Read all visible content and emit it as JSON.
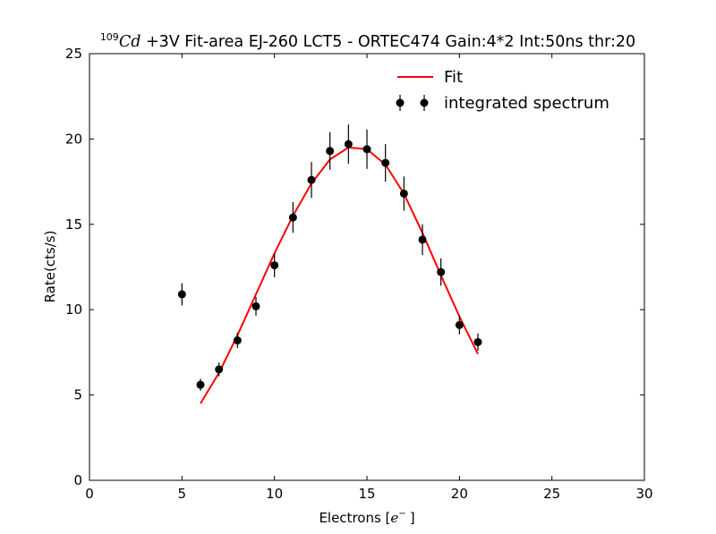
{
  "chart_data": {
    "type": "scatter",
    "title_sup": "109",
    "title_symbol": "Cd",
    "title_rest": " +3V Fit-area EJ-260 LCT5 - ORTEC474 Gain:4*2 Int:50ns thr:20",
    "xlabel_prefix": "Electrons [",
    "xlabel_math": "e",
    "xlabel_sup": "−",
    "xlabel_suffix": "]",
    "ylabel": "Rate(cts/s)",
    "xlim": [
      0,
      30
    ],
    "ylim": [
      0,
      25
    ],
    "x_ticks": [
      "0",
      "5",
      "10",
      "15",
      "20",
      "25",
      "30"
    ],
    "y_ticks": [
      "0",
      "5",
      "10",
      "15",
      "20",
      "25"
    ],
    "legend_position": "top-right",
    "series": [
      {
        "name": "integrated spectrum",
        "kind": "errorbar",
        "color": "#000000",
        "x": [
          5,
          6,
          7,
          8,
          9,
          10,
          11,
          12,
          13,
          14,
          15,
          16,
          17,
          18,
          19,
          20,
          21
        ],
        "y": [
          10.9,
          5.6,
          6.5,
          8.2,
          10.2,
          12.6,
          15.4,
          17.6,
          19.3,
          19.7,
          19.4,
          18.6,
          16.8,
          14.1,
          12.2,
          9.1,
          8.1
        ],
        "yerr": [
          0.65,
          0.35,
          0.4,
          0.45,
          0.55,
          0.7,
          0.9,
          1.05,
          1.1,
          1.15,
          1.15,
          1.1,
          1.0,
          0.9,
          0.8,
          0.55,
          0.5
        ]
      },
      {
        "name": "Fit",
        "kind": "line",
        "color": "#ff0000",
        "x": [
          6,
          7,
          8,
          9,
          10,
          11,
          12,
          13,
          14,
          15,
          16,
          17,
          18,
          19,
          20,
          21
        ],
        "y": [
          4.5,
          6.3,
          8.5,
          10.9,
          13.3,
          15.5,
          17.4,
          18.8,
          19.5,
          19.4,
          18.5,
          16.8,
          14.5,
          12.0,
          9.6,
          7.4
        ]
      }
    ]
  }
}
